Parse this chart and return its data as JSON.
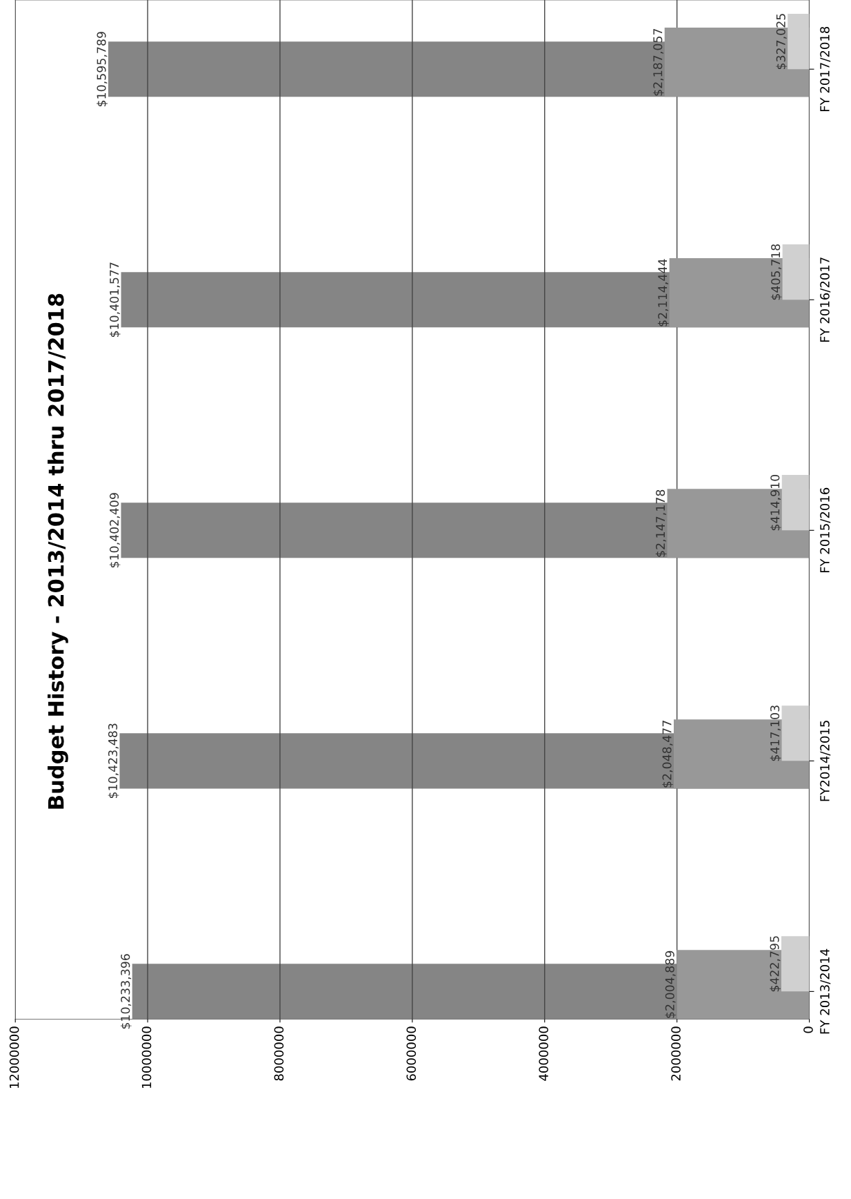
{
  "chart_data": {
    "type": "bar",
    "orientation": "horizontal",
    "title": "Budget History - 2013/2014 thru 2017/2018",
    "categories": [
      "FY 2017/2018",
      "FY 2016/2017",
      "FY 2015/2016",
      "FY2014/2015",
      "FY 2013/2014"
    ],
    "series": [
      {
        "color": "#858585",
        "values": [
          10595789,
          10401577,
          10402409,
          10423483,
          10233396
        ],
        "value_labels": [
          "$10,595,789",
          "$10,401,577",
          "$10,402,409",
          "$10,423,483",
          "$10,233,396"
        ]
      },
      {
        "color": "#989898",
        "values": [
          2187057,
          2114444,
          2147178,
          2048477,
          2004889
        ],
        "value_labels": [
          "$2,187,057",
          "$2,114,444",
          "$2,147,178",
          "$2,048,477",
          "$2,004,889"
        ]
      },
      {
        "color": "#d0d0d0",
        "values": [
          327025,
          405718,
          414910,
          417103,
          422795
        ],
        "value_labels": [
          "$327,025",
          "$405,718",
          "$414,910",
          "$417,103",
          "$422,795"
        ]
      }
    ],
    "xlim": [
      12000000,
      0
    ],
    "xticks": [
      0,
      2000000,
      4000000,
      6000000,
      8000000,
      10000000,
      12000000
    ],
    "grid": "x",
    "legend": false
  }
}
